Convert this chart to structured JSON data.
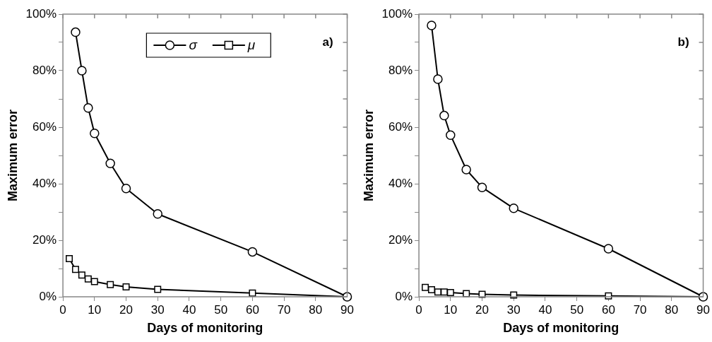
{
  "chart_data": [
    {
      "type": "line",
      "xlabel": "Days of monitoring",
      "ylabel": "Maximum error",
      "x": [
        2,
        4,
        6,
        8,
        10,
        15,
        20,
        30,
        60,
        90
      ],
      "series": [
        {
          "name": "σ",
          "color": "#000000",
          "marker": "circle",
          "values": [
            null,
            93.6,
            80,
            66.8,
            57.8,
            47.2,
            38.3,
            29.3,
            15.9,
            0
          ]
        },
        {
          "name": "μ",
          "color": "#000000",
          "marker": "square",
          "values": [
            13.5,
            9.7,
            7.7,
            6.3,
            5.4,
            4.3,
            3.5,
            2.6,
            1.3,
            0
          ]
        }
      ],
      "xlim": [
        0,
        90
      ],
      "xticks": [
        0,
        10,
        20,
        30,
        40,
        50,
        60,
        70,
        80,
        90
      ],
      "ylim": [
        0,
        100
      ],
      "yticks": [
        {
          "value": 0,
          "label": "0%"
        },
        {
          "value": 10,
          "label": null
        },
        {
          "value": 20,
          "label": "20%"
        },
        {
          "value": 30,
          "label": null
        },
        {
          "value": 40,
          "label": "40%"
        },
        {
          "value": 50,
          "label": null
        },
        {
          "value": 60,
          "label": "60%"
        },
        {
          "value": 70,
          "label": null
        },
        {
          "value": 80,
          "label": "80%"
        },
        {
          "value": 90,
          "label": null
        },
        {
          "value": 100,
          "label": "100%"
        }
      ],
      "grid": false,
      "legend": "top",
      "line_style": "solid",
      "annotations": [
        "a)"
      ]
    },
    {
      "type": "line",
      "xlabel": "Days of monitoring",
      "ylabel": "Maximum error",
      "x": [
        2,
        4,
        6,
        8,
        10,
        15,
        20,
        30,
        60,
        90
      ],
      "series": [
        {
          "color": "#000000",
          "marker": "circle",
          "values": [
            null,
            96,
            77,
            64.1,
            57.2,
            45,
            38.7,
            31.3,
            17,
            0
          ]
        },
        {
          "color": "#000000",
          "marker": "square",
          "values": [
            3.3,
            2.5,
            1.7,
            1.7,
            1.5,
            1.1,
            0.9,
            0.6,
            0.3,
            0
          ]
        }
      ],
      "xlim": [
        0,
        90
      ],
      "xticks": [
        0,
        10,
        20,
        30,
        40,
        50,
        60,
        70,
        80,
        90
      ],
      "ylim": [
        0,
        100
      ],
      "yticks": [
        {
          "value": 0,
          "label": "0%"
        },
        {
          "value": 10,
          "label": null
        },
        {
          "value": 20,
          "label": "20%"
        },
        {
          "value": 30,
          "label": null
        },
        {
          "value": 40,
          "label": "40%"
        },
        {
          "value": 50,
          "label": null
        },
        {
          "value": 60,
          "label": "60%"
        },
        {
          "value": 70,
          "label": null
        },
        {
          "value": 80,
          "label": "80%"
        },
        {
          "value": 90,
          "label": null
        },
        {
          "value": 100,
          "label": "100%"
        }
      ],
      "grid": false,
      "legend": false,
      "line_style": "solid",
      "annotations": [
        "b)"
      ]
    }
  ]
}
